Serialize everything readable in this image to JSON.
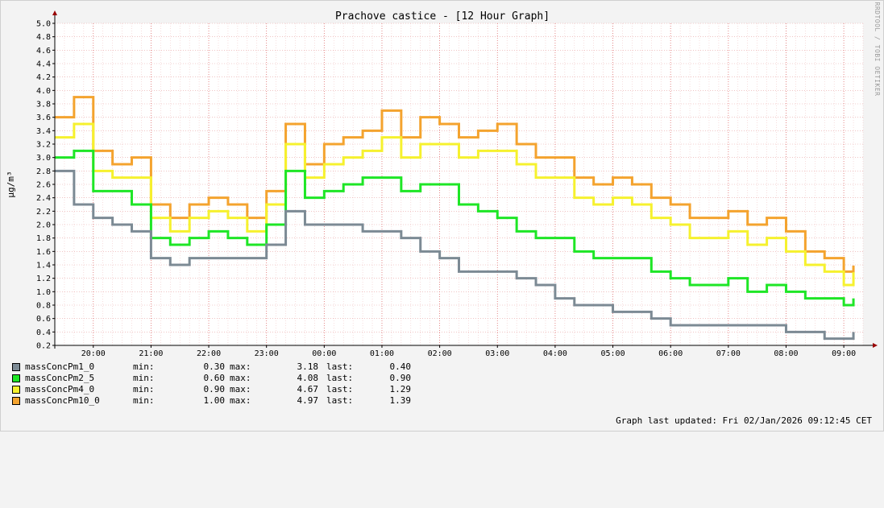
{
  "chart_data": {
    "type": "line",
    "title": "Prachove castice - [12 Hour Graph]",
    "ylabel": "µg/m³",
    "watermark": "RRDTOOL / TOBI OETIKER",
    "ylim": [
      0.2,
      5.0
    ],
    "yticks": [
      "0.2",
      "0.4",
      "0.6",
      "0.8",
      "1.0",
      "1.2",
      "1.4",
      "1.6",
      "1.8",
      "2.0",
      "2.2",
      "2.4",
      "2.6",
      "2.8",
      "3.0",
      "3.2",
      "3.4",
      "3.6",
      "3.8",
      "4.0",
      "4.2",
      "4.4",
      "4.6",
      "4.8",
      "5.0"
    ],
    "xlim": [
      "19:20",
      "09:20"
    ],
    "xticks": [
      "20:00",
      "21:00",
      "22:00",
      "23:00",
      "00:00",
      "01:00",
      "02:00",
      "03:00",
      "04:00",
      "05:00",
      "06:00",
      "07:00",
      "08:00",
      "09:00"
    ],
    "grid": true,
    "series": [
      {
        "name": "massConcPm10_0",
        "color": "#f4a32e",
        "min": "1.00",
        "max": "4.97",
        "last": "1.39",
        "x": [
          "19:20",
          "19:40",
          "20:00",
          "20:20",
          "20:40",
          "21:00",
          "21:20",
          "21:40",
          "22:00",
          "22:20",
          "22:40",
          "23:00",
          "23:20",
          "23:40",
          "00:00",
          "00:20",
          "00:40",
          "01:00",
          "01:20",
          "01:40",
          "02:00",
          "02:20",
          "02:40",
          "03:00",
          "03:20",
          "03:40",
          "04:00",
          "04:20",
          "04:40",
          "05:00",
          "05:20",
          "05:40",
          "06:00",
          "06:20",
          "06:40",
          "07:00",
          "07:20",
          "07:40",
          "08:00",
          "08:20",
          "08:40",
          "09:00",
          "09:10"
        ],
        "values": [
          3.6,
          3.9,
          3.1,
          2.9,
          3.0,
          2.3,
          2.1,
          2.3,
          2.4,
          2.3,
          2.1,
          2.5,
          3.5,
          2.9,
          3.2,
          3.3,
          3.4,
          3.7,
          3.3,
          3.6,
          3.5,
          3.3,
          3.4,
          3.5,
          3.2,
          3.0,
          3.0,
          2.7,
          2.6,
          2.7,
          2.6,
          2.4,
          2.3,
          2.1,
          2.1,
          2.2,
          2.0,
          2.1,
          1.9,
          1.6,
          1.5,
          1.3,
          1.39
        ]
      },
      {
        "name": "massConcPm4_0",
        "color": "#f6f12e",
        "min": "0.90",
        "max": "4.67",
        "last": "1.29",
        "x": [
          "19:20",
          "19:40",
          "20:00",
          "20:20",
          "20:40",
          "21:00",
          "21:20",
          "21:40",
          "22:00",
          "22:20",
          "22:40",
          "23:00",
          "23:20",
          "23:40",
          "00:00",
          "00:20",
          "00:40",
          "01:00",
          "01:20",
          "01:40",
          "02:00",
          "02:20",
          "02:40",
          "03:00",
          "03:20",
          "03:40",
          "04:00",
          "04:20",
          "04:40",
          "05:00",
          "05:20",
          "05:40",
          "06:00",
          "06:20",
          "06:40",
          "07:00",
          "07:20",
          "07:40",
          "08:00",
          "08:20",
          "08:40",
          "09:00",
          "09:10"
        ],
        "values": [
          3.3,
          3.5,
          2.8,
          2.7,
          2.7,
          2.1,
          1.9,
          2.1,
          2.2,
          2.1,
          1.9,
          2.3,
          3.2,
          2.7,
          2.9,
          3.0,
          3.1,
          3.3,
          3.0,
          3.2,
          3.2,
          3.0,
          3.1,
          3.1,
          2.9,
          2.7,
          2.7,
          2.4,
          2.3,
          2.4,
          2.3,
          2.1,
          2.0,
          1.8,
          1.8,
          1.9,
          1.7,
          1.8,
          1.6,
          1.4,
          1.3,
          1.1,
          1.29
        ]
      },
      {
        "name": "massConcPm2_5",
        "color": "#1ee626",
        "min": "0.60",
        "max": "4.08",
        "last": "0.90",
        "x": [
          "19:20",
          "19:40",
          "20:00",
          "20:20",
          "20:40",
          "21:00",
          "21:20",
          "21:40",
          "22:00",
          "22:20",
          "22:40",
          "23:00",
          "23:20",
          "23:40",
          "00:00",
          "00:20",
          "00:40",
          "01:00",
          "01:20",
          "01:40",
          "02:00",
          "02:20",
          "02:40",
          "03:00",
          "03:20",
          "03:40",
          "04:00",
          "04:20",
          "04:40",
          "05:00",
          "05:20",
          "05:40",
          "06:00",
          "06:20",
          "06:40",
          "07:00",
          "07:20",
          "07:40",
          "08:00",
          "08:20",
          "08:40",
          "09:00",
          "09:10"
        ],
        "values": [
          3.0,
          3.1,
          2.5,
          2.5,
          2.3,
          1.8,
          1.7,
          1.8,
          1.9,
          1.8,
          1.7,
          2.0,
          2.8,
          2.4,
          2.5,
          2.6,
          2.7,
          2.7,
          2.5,
          2.6,
          2.6,
          2.3,
          2.2,
          2.1,
          1.9,
          1.8,
          1.8,
          1.6,
          1.5,
          1.5,
          1.5,
          1.3,
          1.2,
          1.1,
          1.1,
          1.2,
          1.0,
          1.1,
          1.0,
          0.9,
          0.9,
          0.8,
          0.9
        ]
      },
      {
        "name": "massConcPm1_0",
        "color": "#7c8a94",
        "min": "0.30",
        "max": "3.18",
        "last": "0.40",
        "x": [
          "19:20",
          "19:40",
          "20:00",
          "20:20",
          "20:40",
          "21:00",
          "21:20",
          "21:40",
          "22:00",
          "22:20",
          "22:40",
          "23:00",
          "23:20",
          "23:40",
          "00:00",
          "00:20",
          "00:40",
          "01:00",
          "01:20",
          "01:40",
          "02:00",
          "02:20",
          "02:40",
          "03:00",
          "03:20",
          "03:40",
          "04:00",
          "04:20",
          "04:40",
          "05:00",
          "05:20",
          "05:40",
          "06:00",
          "06:20",
          "06:40",
          "07:00",
          "07:20",
          "07:40",
          "08:00",
          "08:20",
          "08:40",
          "09:00",
          "09:10"
        ],
        "values": [
          2.8,
          2.3,
          2.1,
          2.0,
          1.9,
          1.5,
          1.4,
          1.5,
          1.5,
          1.5,
          1.5,
          1.7,
          2.2,
          2.0,
          2.0,
          2.0,
          1.9,
          1.9,
          1.8,
          1.6,
          1.5,
          1.3,
          1.3,
          1.3,
          1.2,
          1.1,
          0.9,
          0.8,
          0.8,
          0.7,
          0.7,
          0.6,
          0.5,
          0.5,
          0.5,
          0.5,
          0.5,
          0.5,
          0.4,
          0.4,
          0.3,
          0.3,
          0.4
        ]
      }
    ]
  },
  "legend": {
    "min_label": "min:",
    "max_label": "max:",
    "last_label": "last:",
    "rows": [
      {
        "name": "massConcPm1_0",
        "color": "#7c8a94",
        "min": "0.30",
        "max": "3.18",
        "last": "0.40"
      },
      {
        "name": "massConcPm2_5",
        "color": "#1ee626",
        "min": "0.60",
        "max": "4.08",
        "last": "0.90"
      },
      {
        "name": "massConcPm4_0",
        "color": "#f6f12e",
        "min": "0.90",
        "max": "4.67",
        "last": "1.29"
      },
      {
        "name": "massConcPm10_0",
        "color": "#f4a32e",
        "min": "1.00",
        "max": "4.97",
        "last": "1.39"
      }
    ]
  },
  "footer": {
    "updated": "Graph last updated: Fri 02/Jan/2026 09:12:45 CET"
  }
}
